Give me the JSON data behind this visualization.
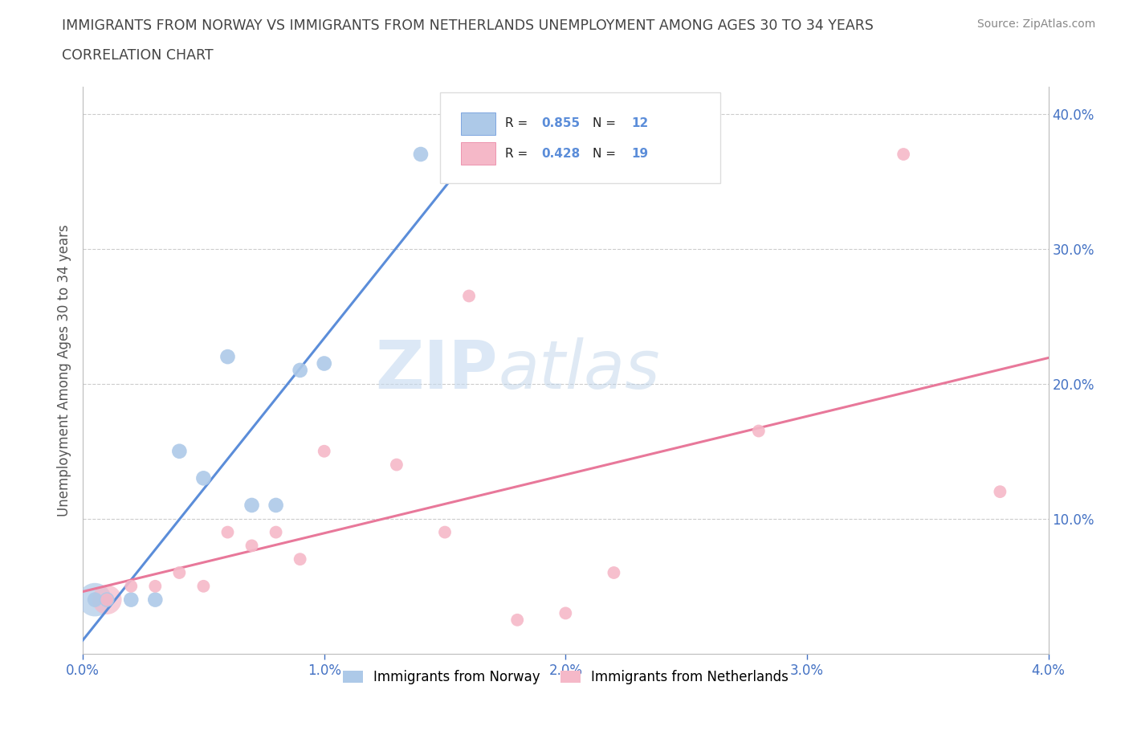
{
  "title_line1": "IMMIGRANTS FROM NORWAY VS IMMIGRANTS FROM NETHERLANDS UNEMPLOYMENT AMONG AGES 30 TO 34 YEARS",
  "title_line2": "CORRELATION CHART",
  "source": "Source: ZipAtlas.com",
  "ylabel": "Unemployment Among Ages 30 to 34 years",
  "norway_R": 0.855,
  "norway_N": 12,
  "netherlands_R": 0.428,
  "netherlands_N": 19,
  "norway_color": "#adc9e8",
  "netherlands_color": "#f5b8c8",
  "norway_line_color": "#5b8dd9",
  "netherlands_line_color": "#e8789a",
  "norway_x": [
    0.0005,
    0.001,
    0.002,
    0.003,
    0.004,
    0.005,
    0.006,
    0.007,
    0.008,
    0.009,
    0.01,
    0.014
  ],
  "norway_y": [
    0.04,
    0.04,
    0.04,
    0.04,
    0.15,
    0.13,
    0.22,
    0.11,
    0.11,
    0.21,
    0.215,
    0.37
  ],
  "netherlands_x": [
    0.001,
    0.002,
    0.003,
    0.004,
    0.005,
    0.006,
    0.007,
    0.008,
    0.009,
    0.01,
    0.013,
    0.015,
    0.016,
    0.018,
    0.02,
    0.022,
    0.028,
    0.034,
    0.038
  ],
  "netherlands_y": [
    0.04,
    0.05,
    0.05,
    0.06,
    0.05,
    0.09,
    0.08,
    0.09,
    0.07,
    0.15,
    0.14,
    0.09,
    0.265,
    0.025,
    0.03,
    0.06,
    0.165,
    0.37,
    0.12
  ],
  "xlim": [
    0.0,
    0.04
  ],
  "ylim": [
    0.0,
    0.42
  ],
  "xticks": [
    0.0,
    0.01,
    0.02,
    0.03,
    0.04
  ],
  "xtick_labels": [
    "0.0%",
    "1.0%",
    "2.0%",
    "3.0%",
    "4.0%"
  ],
  "yticks_right": [
    0.1,
    0.2,
    0.3,
    0.4
  ],
  "ytick_right_labels": [
    "10.0%",
    "20.0%",
    "30.0%",
    "40.0%"
  ],
  "watermark_zip": "ZIP",
  "watermark_atlas": "atlas",
  "background_color": "#ffffff",
  "title_color": "#555555",
  "legend_label_norway": "Immigrants from Norway",
  "legend_label_netherlands": "Immigrants from Netherlands"
}
